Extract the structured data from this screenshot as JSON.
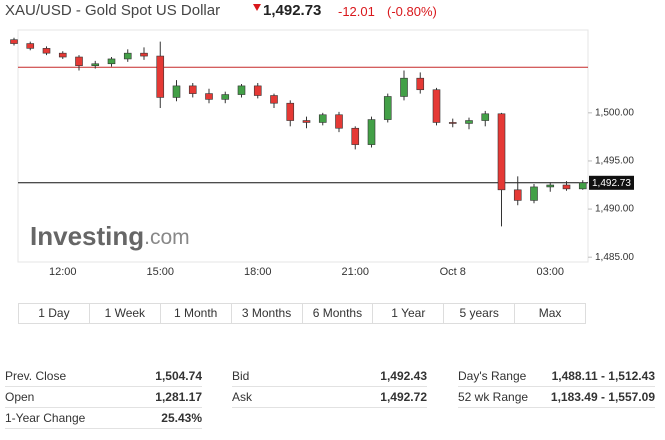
{
  "header": {
    "title": "XAU/USD - Gold Spot US Dollar",
    "price": "1,492.73",
    "change": "-12.01",
    "change_percent": "(-0.80%)"
  },
  "chart_data": {
    "type": "candlestick",
    "watermark_brand": "Investing",
    "watermark_suffix": ".com",
    "categories": [
      null,
      null,
      null,
      "12:00",
      null,
      null,
      null,
      null,
      null,
      "15:00",
      null,
      null,
      null,
      null,
      null,
      "18:00",
      null,
      null,
      null,
      null,
      null,
      "21:00",
      null,
      null,
      null,
      null,
      null,
      "Oct 8",
      null,
      null,
      null,
      null,
      null,
      "03:00",
      null,
      null
    ],
    "open": [
      1507.6,
      1507.2,
      1506.7,
      1506.2,
      1505.8,
      1504.9,
      1505.1,
      1505.6,
      1506.2,
      1505.9,
      1501.6,
      1502.8,
      1502.0,
      1501.4,
      1501.9,
      1502.8,
      1501.8,
      1501.0,
      1499.2,
      1499.0,
      1499.8,
      1498.4,
      1496.7,
      1499.3,
      1501.7,
      1503.6,
      1502.4,
      1499.0,
      1498.9,
      1499.2,
      1499.9,
      1492.0,
      1490.9,
      1492.3,
      1492.5,
      1492.1
    ],
    "high": [
      1507.8,
      1507.4,
      1506.9,
      1506.4,
      1506.0,
      1505.4,
      1505.8,
      1506.6,
      1506.8,
      1507.4,
      1503.4,
      1503.1,
      1502.5,
      1502.2,
      1503.0,
      1503.1,
      1502.0,
      1501.3,
      1499.6,
      1500.0,
      1500.1,
      1498.6,
      1499.6,
      1502.0,
      1504.4,
      1504.2,
      1502.6,
      1499.4,
      1499.5,
      1500.2,
      1500.0,
      1493.4,
      1492.6,
      1492.8,
      1492.9,
      1493.0
    ],
    "low": [
      1507.0,
      1506.5,
      1506.0,
      1505.6,
      1504.4,
      1504.6,
      1504.8,
      1505.3,
      1505.5,
      1500.5,
      1501.2,
      1501.6,
      1501.0,
      1501.0,
      1501.6,
      1501.5,
      1500.5,
      1498.6,
      1498.4,
      1498.7,
      1498.0,
      1496.2,
      1496.4,
      1499.0,
      1501.3,
      1502.0,
      1498.7,
      1498.5,
      1498.3,
      1498.6,
      1488.2,
      1490.4,
      1490.6,
      1491.8,
      1491.9,
      1492.0
    ],
    "close": [
      1507.2,
      1506.7,
      1506.2,
      1505.8,
      1504.9,
      1505.1,
      1505.6,
      1506.2,
      1505.9,
      1501.6,
      1502.8,
      1502.0,
      1501.4,
      1501.9,
      1502.8,
      1501.8,
      1501.0,
      1499.2,
      1499.0,
      1499.8,
      1498.4,
      1496.7,
      1499.3,
      1501.7,
      1503.6,
      1502.4,
      1499.0,
      1498.9,
      1499.2,
      1499.9,
      1492.0,
      1490.9,
      1492.3,
      1492.5,
      1492.1,
      1492.73
    ],
    "up_color": "#43a047",
    "down_color": "#e53935",
    "ylim": [
      1484.5,
      1508.4
    ],
    "yticks": [
      {
        "value": 1485,
        "label": "1,485.00"
      },
      {
        "value": 1490,
        "label": "1,490.00"
      },
      {
        "value": 1495,
        "label": "1,495.00"
      },
      {
        "value": 1500,
        "label": "1,500.00"
      }
    ],
    "grid": false,
    "reference_line": 1504.74,
    "reference_line_color": "#c62828",
    "last_price": 1492.73,
    "last_price_label": "1,492.73",
    "last_price_color": "#111111"
  },
  "buttons": [
    "1 Day",
    "1 Week",
    "1 Month",
    "3 Months",
    "6 Months",
    "1 Year",
    "5 years",
    "Max"
  ],
  "stats": [
    [
      {
        "label": "Prev. Close",
        "value": "1,504.74"
      },
      {
        "label": "Open",
        "value": "1,281.17"
      },
      {
        "label": "1-Year Change",
        "value": "25.43%"
      }
    ],
    [
      {
        "label": "Bid",
        "value": "1,492.43"
      },
      {
        "label": "Ask",
        "value": "1,492.72"
      }
    ],
    [
      {
        "label": "Day's Range",
        "value": "1,488.11 - 1,512.43"
      },
      {
        "label": "52 wk Range",
        "value": "1,183.49 - 1,557.09"
      }
    ]
  ]
}
